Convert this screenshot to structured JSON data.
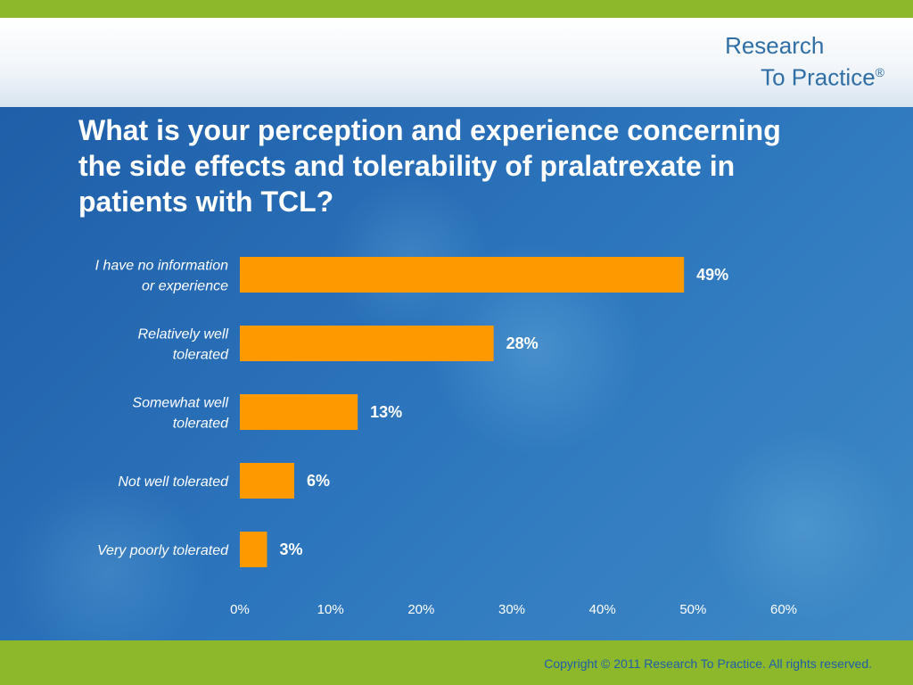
{
  "header": {
    "logo_line1": "Research",
    "logo_line2": "To Practice",
    "logo_mark": "®"
  },
  "title": "What is your perception and experience concerning the side effects and tolerability of pralatrexate in patients with TCL?",
  "footer": {
    "copyright": "Copyright © 2011 Research To Practice. All rights reserved."
  },
  "colors": {
    "bar": "#ff9900",
    "top_bar": "#8db82c",
    "background": "#2a6db0"
  },
  "chart_data": {
    "type": "bar",
    "orientation": "horizontal",
    "categories": [
      [
        "I have no information",
        "or experience"
      ],
      [
        "Relatively well",
        "tolerated"
      ],
      [
        "Somewhat well",
        "tolerated"
      ],
      [
        "Not well tolerated"
      ],
      [
        "Very poorly tolerated"
      ]
    ],
    "values": [
      49,
      28,
      13,
      6,
      3
    ],
    "value_labels": [
      "49%",
      "28%",
      "13%",
      "6%",
      "3%"
    ],
    "xlim": [
      0,
      60
    ],
    "xticks": [
      "0%",
      "10%",
      "20%",
      "30%",
      "40%",
      "50%",
      "60%"
    ],
    "grid": false,
    "legend": "none"
  }
}
